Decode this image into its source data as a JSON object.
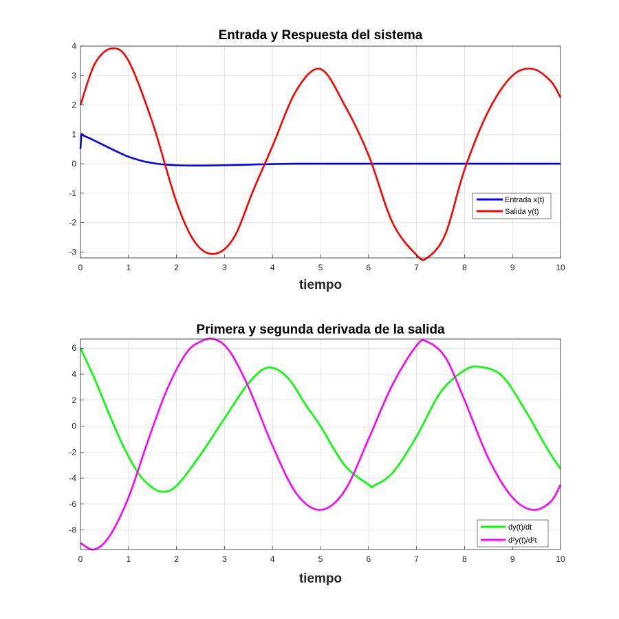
{
  "chart_data": [
    {
      "type": "line",
      "title": "Entrada y Respuesta del sistema",
      "xlabel": "tiempo",
      "ylabel": "",
      "xlim": [
        0,
        10
      ],
      "ylim": [
        -3.2,
        4
      ],
      "xticks": [
        "0",
        "1",
        "2",
        "3",
        "4",
        "5",
        "6",
        "7",
        "8",
        "9",
        "10"
      ],
      "yticks": [
        "-3",
        "-2",
        "-1",
        "0",
        "1",
        "2",
        "3",
        "4"
      ],
      "grid": true,
      "legend_position": "right",
      "series": [
        {
          "name": "Entrada x(t)",
          "color": "#0000ff",
          "x": [
            0,
            0.02,
            0.05,
            0.1,
            0.2,
            0.3,
            0.5,
            0.7,
            1.0,
            1.3,
            1.6,
            1.8,
            2.0,
            2.3,
            2.6,
            3.0,
            3.5,
            4.0,
            4.5,
            5.0,
            6.0,
            7.0,
            8.0,
            9.0,
            10.0
          ],
          "values": [
            0.5,
            0.98,
            0.97,
            0.93,
            0.86,
            0.78,
            0.62,
            0.46,
            0.24,
            0.09,
            0.0,
            -0.03,
            -0.05,
            -0.06,
            -0.06,
            -0.05,
            -0.03,
            -0.01,
            0.0,
            0.0,
            0.0,
            0.0,
            0.0,
            0.0,
            0.0
          ]
        },
        {
          "name": "Salida y(t)",
          "color": "#ff0000",
          "x": [
            0,
            0.3,
            0.65,
            1.0,
            1.5,
            2.0,
            2.4,
            2.8,
            3.2,
            3.6,
            4.0,
            4.5,
            5.0,
            5.5,
            6.0,
            6.5,
            7.0,
            7.22,
            7.6,
            8.0,
            8.5,
            9.0,
            9.43,
            9.8,
            10.0
          ],
          "values": [
            2.0,
            3.4,
            3.92,
            3.5,
            1.4,
            -1.3,
            -2.7,
            -3.06,
            -2.5,
            -0.9,
            0.6,
            2.5,
            3.22,
            2.0,
            0.3,
            -2.0,
            -3.1,
            -3.2,
            -2.4,
            -0.2,
            1.8,
            3.0,
            3.22,
            2.8,
            2.25
          ]
        }
      ]
    },
    {
      "type": "line",
      "title": "Primera y segunda derivada de la salida",
      "xlabel": "tiempo",
      "ylabel": "",
      "xlim": [
        0,
        10
      ],
      "ylim": [
        -9.5,
        6.7
      ],
      "xticks": [
        "0",
        "1",
        "2",
        "3",
        "4",
        "5",
        "6",
        "7",
        "8",
        "9",
        "10"
      ],
      "yticks": [
        "6",
        "4",
        "2",
        "0",
        "-2",
        "-4",
        "-6",
        "-8"
      ],
      "grid": true,
      "legend_position": "bottom-right",
      "series": [
        {
          "name": "dy(t)/dt",
          "color": "#00ff00",
          "x": [
            0,
            0.3,
            0.6,
            0.9,
            1.2,
            1.45,
            1.7,
            2.0,
            2.5,
            3.0,
            3.5,
            3.9,
            4.3,
            4.7,
            5.0,
            5.5,
            6.0,
            6.1,
            6.5,
            7.0,
            7.5,
            8.0,
            8.35,
            8.8,
            9.3,
            9.7,
            10.0
          ],
          "values": [
            6.0,
            3.6,
            0.9,
            -1.6,
            -3.6,
            -4.6,
            -5.05,
            -4.6,
            -2.2,
            0.6,
            3.3,
            4.5,
            3.8,
            1.6,
            0.0,
            -3.0,
            -4.5,
            -4.6,
            -3.6,
            -0.8,
            2.6,
            4.3,
            4.55,
            3.8,
            1.0,
            -1.6,
            -3.3
          ]
        },
        {
          "name": "d²y(t)/d²t",
          "color": "#ff00ff",
          "x": [
            0,
            0.28,
            0.6,
            1.0,
            1.4,
            1.8,
            2.2,
            2.5,
            2.78,
            3.1,
            3.5,
            4.0,
            4.5,
            5.0,
            5.5,
            6.0,
            6.5,
            7.0,
            7.22,
            7.6,
            8.0,
            8.5,
            9.0,
            9.43,
            9.8,
            10.0
          ],
          "values": [
            -9.0,
            -9.5,
            -8.5,
            -5.5,
            -1.2,
            2.8,
            5.6,
            6.5,
            6.7,
            5.8,
            3.0,
            -1.5,
            -5.2,
            -6.45,
            -5.0,
            -1.0,
            3.2,
            6.2,
            6.5,
            5.3,
            2.0,
            -2.5,
            -5.5,
            -6.45,
            -5.8,
            -4.5
          ]
        }
      ]
    }
  ]
}
